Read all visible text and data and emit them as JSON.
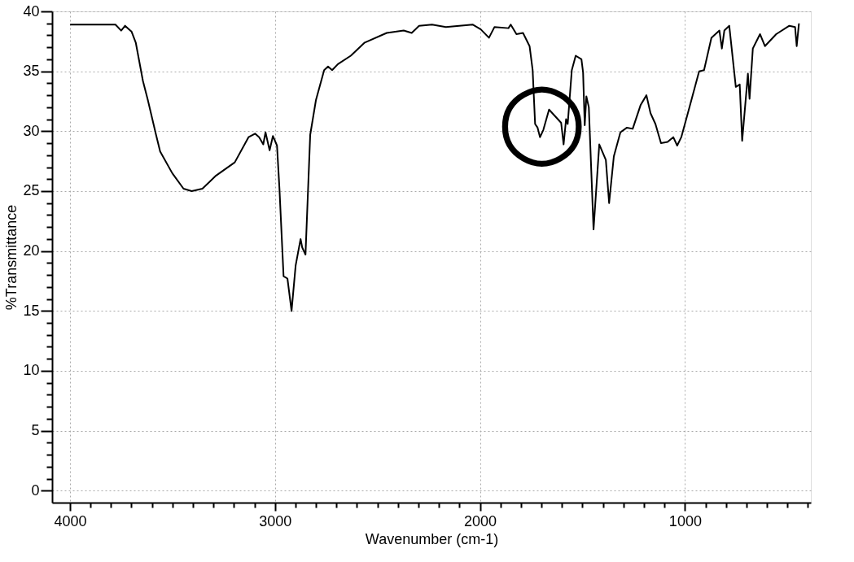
{
  "chart_data": {
    "type": "line",
    "xlabel": "Wavenumber (cm-1)",
    "ylabel": "%Transmittance",
    "xlim": [
      4087,
      386
    ],
    "ylim": [
      -1,
      40
    ],
    "xticks": [
      4000,
      3000,
      2000,
      1000,
      {
        "value": 3900,
        "label": null
      },
      {
        "value": 3800,
        "label": null
      },
      {
        "value": 3700,
        "label": null
      },
      {
        "value": 3600,
        "label": null
      },
      {
        "value": 3500,
        "label": null
      },
      {
        "value": 3400,
        "label": null
      },
      {
        "value": 3300,
        "label": null
      },
      {
        "value": 3200,
        "label": null
      },
      {
        "value": 3100,
        "label": null
      },
      {
        "value": 2900,
        "label": null
      },
      {
        "value": 2800,
        "label": null
      },
      {
        "value": 2700,
        "label": null
      },
      {
        "value": 2600,
        "label": null
      },
      {
        "value": 2500,
        "label": null
      },
      {
        "value": 2400,
        "label": null
      },
      {
        "value": 2300,
        "label": null
      },
      {
        "value": 2200,
        "label": null
      },
      {
        "value": 2100,
        "label": null
      },
      {
        "value": 1900,
        "label": null
      },
      {
        "value": 1800,
        "label": null
      },
      {
        "value": 1700,
        "label": null
      },
      {
        "value": 1600,
        "label": null
      },
      {
        "value": 1500,
        "label": null
      },
      {
        "value": 1400,
        "label": null
      },
      {
        "value": 1300,
        "label": null
      },
      {
        "value": 1200,
        "label": null
      },
      {
        "value": 1100,
        "label": null
      },
      {
        "value": 900,
        "label": null
      },
      {
        "value": 800,
        "label": null
      },
      {
        "value": 700,
        "label": null
      },
      {
        "value": 600,
        "label": null
      },
      {
        "value": 500,
        "label": null
      },
      {
        "value": 400,
        "label": null
      }
    ],
    "yticks": [
      0,
      5,
      10,
      15,
      20,
      25,
      30,
      35,
      40,
      {
        "value": 1,
        "label": null
      },
      {
        "value": 2,
        "label": null
      },
      {
        "value": 3,
        "label": null
      },
      {
        "value": 4,
        "label": null
      },
      {
        "value": 6,
        "label": null
      },
      {
        "value": 7,
        "label": null
      },
      {
        "value": 8,
        "label": null
      },
      {
        "value": 9,
        "label": null
      },
      {
        "value": 11,
        "label": null
      },
      {
        "value": 12,
        "label": null
      },
      {
        "value": 13,
        "label": null
      },
      {
        "value": 14,
        "label": null
      },
      {
        "value": 16,
        "label": null
      },
      {
        "value": 17,
        "label": null
      },
      {
        "value": 18,
        "label": null
      },
      {
        "value": 19,
        "label": null
      },
      {
        "value": 21,
        "label": null
      },
      {
        "value": 22,
        "label": null
      },
      {
        "value": 23,
        "label": null
      },
      {
        "value": 24,
        "label": null
      },
      {
        "value": 26,
        "label": null
      },
      {
        "value": 27,
        "label": null
      },
      {
        "value": 28,
        "label": null
      },
      {
        "value": 29,
        "label": null
      },
      {
        "value": 31,
        "label": null
      },
      {
        "value": 32,
        "label": null
      },
      {
        "value": 33,
        "label": null
      },
      {
        "value": 34,
        "label": null
      },
      {
        "value": 36,
        "label": null
      },
      {
        "value": 37,
        "label": null
      },
      {
        "value": 38,
        "label": null
      },
      {
        "value": 39,
        "label": null
      }
    ],
    "grid": true,
    "line_style": "solid",
    "marker": "none",
    "annotations": [
      {
        "text": "○",
        "x": 1698,
        "y": 30.7
      }
    ],
    "series": [
      {
        "color": "#000000",
        "x": [
          3999,
          3778,
          3750,
          3731,
          3699,
          3679,
          3644,
          3620,
          3580,
          3560,
          3501,
          3446,
          3406,
          3354,
          3287,
          3196,
          3129,
          3097,
          3077,
          3057,
          3046,
          3026,
          3010,
          2990,
          2978,
          2958,
          2939,
          2919,
          2899,
          2875,
          2867,
          2851,
          2828,
          2800,
          2760,
          2741,
          2721,
          2693,
          2630,
          2562,
          2455,
          2372,
          2333,
          2297,
          2234,
          2166,
          2036,
          1996,
          1956,
          1929,
          1861,
          1850,
          1822,
          1790,
          1758,
          1743,
          1731,
          1719,
          1707,
          1691,
          1663,
          1604,
          1592,
          1580,
          1572,
          1552,
          1533,
          1505,
          1497,
          1489,
          1481,
          1469,
          1446,
          1418,
          1386,
          1370,
          1347,
          1315,
          1283,
          1255,
          1216,
          1188,
          1168,
          1144,
          1117,
          1085,
          1057,
          1038,
          1018,
          978,
          931,
          907,
          871,
          832,
          820,
          808,
          784,
          752,
          733,
          721,
          693,
          685,
          669,
          634,
          610,
          555,
          491,
          463,
          455,
          444
        ],
        "values": [
          38.9,
          38.9,
          38.4,
          38.8,
          38.3,
          37.4,
          34.2,
          32.6,
          29.7,
          28.3,
          26.5,
          25.2,
          25.0,
          25.2,
          26.3,
          27.4,
          29.5,
          29.8,
          29.5,
          28.9,
          29.9,
          28.4,
          29.6,
          28.8,
          25.2,
          17.9,
          17.7,
          15.0,
          18.8,
          21.0,
          20.3,
          19.7,
          29.7,
          32.6,
          35.1,
          35.4,
          35.1,
          35.6,
          36.3,
          37.4,
          38.2,
          38.4,
          38.2,
          38.8,
          38.9,
          38.7,
          38.9,
          38.5,
          37.8,
          38.7,
          38.6,
          38.9,
          38.1,
          38.2,
          37.1,
          35.1,
          30.6,
          30.3,
          29.5,
          30.1,
          31.8,
          30.7,
          28.9,
          31.0,
          30.6,
          35.1,
          36.3,
          36.0,
          34.9,
          30.5,
          32.9,
          32.0,
          21.8,
          28.9,
          27.6,
          24.0,
          27.9,
          29.9,
          30.3,
          30.2,
          32.2,
          33.0,
          31.5,
          30.6,
          29.0,
          29.1,
          29.5,
          28.8,
          29.5,
          32.0,
          35.0,
          35.1,
          37.8,
          38.4,
          36.9,
          38.4,
          38.8,
          33.7,
          33.9,
          29.2,
          34.8,
          32.7,
          36.9,
          38.1,
          37.1,
          38.1,
          38.8,
          38.7,
          37.1,
          39.0
        ]
      }
    ]
  }
}
